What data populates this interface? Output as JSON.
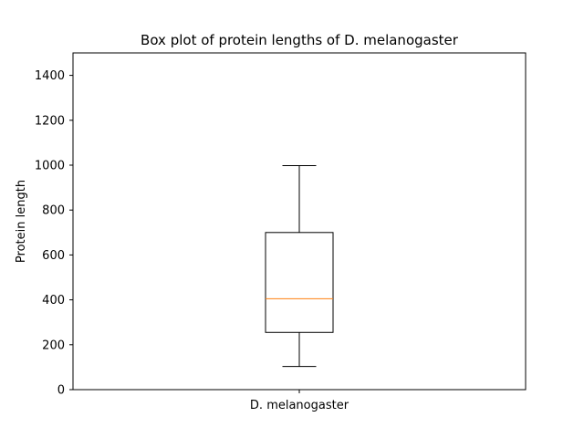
{
  "chart_data": {
    "type": "box",
    "title": "Box plot of protein lengths of D. melanogaster",
    "xlabel": "",
    "ylabel": "Protein length",
    "categories": [
      "D. melanogaster"
    ],
    "boxes": [
      {
        "category": "D. melanogaster",
        "whisker_low": 103,
        "q1": 255,
        "median": 405,
        "q3": 700,
        "whisker_high": 998
      }
    ],
    "ylim": [
      0,
      1500
    ],
    "yticks": [
      0,
      200,
      400,
      600,
      800,
      1000,
      1200,
      1400
    ],
    "grid": false,
    "legend": "none",
    "colors": {
      "box": "#000000",
      "median": "#ff7f0e",
      "frame": "#000000",
      "background": "#ffffff"
    }
  }
}
